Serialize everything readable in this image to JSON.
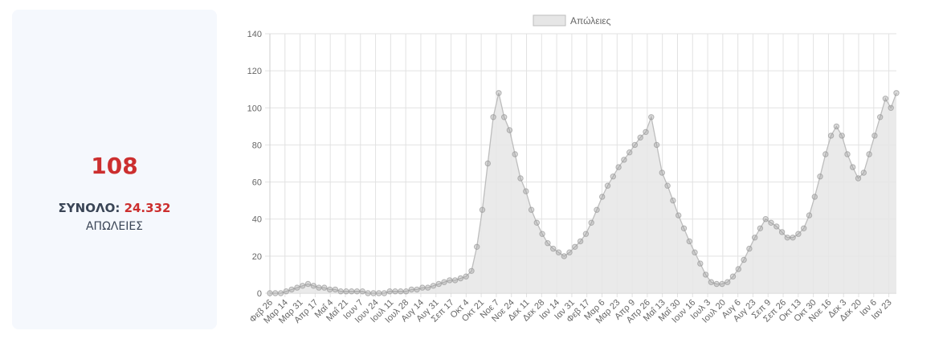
{
  "summary": {
    "latest_value": "108",
    "total_label": "ΣΥΝΟΛΟ:",
    "total_value": "24.332",
    "caption": "ΑΠΩΛΕΙΕΣ"
  },
  "chart_data": {
    "type": "line",
    "title": "",
    "xlabel": "",
    "ylabel": "",
    "ylim": [
      0,
      140
    ],
    "yticks": [
      0,
      20,
      40,
      60,
      80,
      100,
      120,
      140
    ],
    "grid": true,
    "legend": "top-center",
    "colors": {
      "fill": "#e6e6e6",
      "line": "#bdbdbd",
      "point": "#999999",
      "grid": "#e2e2e2"
    },
    "x_tick_labels": [
      "Φεβ 26",
      "Μαρ 14",
      "Μαρ 31",
      "Απρ 17",
      "Μαΐ 4",
      "Μαΐ 21",
      "Ιουν 7",
      "Ιουν 24",
      "Ιουλ 11",
      "Ιουλ 28",
      "Αυγ 14",
      "Αυγ 31",
      "Σεπ 17",
      "Οκτ 4",
      "Οκτ 21",
      "Νοε 7",
      "Νοε 24",
      "Δεκ 11",
      "Δεκ 28",
      "Ιαν 14",
      "Ιαν 31",
      "Φεβ 17",
      "Μαρ 6",
      "Μαρ 23",
      "Απρ 9",
      "Απρ 26",
      "Μαΐ 13",
      "Μαΐ 30",
      "Ιουν 16",
      "Ιουλ 3",
      "Ιουλ 20",
      "Αυγ 6",
      "Αυγ 23",
      "Σεπ 9",
      "Σεπ 26",
      "Οκτ 13",
      "Οκτ 30",
      "Νοε 16",
      "Δεκ 3",
      "Δεκ 20",
      "Ιαν 6",
      "Ιαν 23"
    ],
    "series": [
      {
        "name": "Απώλειες",
        "values": [
          0,
          0,
          0,
          1,
          2,
          3,
          4,
          5,
          4,
          3,
          3,
          2,
          2,
          1,
          1,
          1,
          1,
          1,
          0,
          0,
          0,
          0,
          1,
          1,
          1,
          1,
          2,
          2,
          3,
          3,
          4,
          5,
          6,
          7,
          7,
          8,
          9,
          12,
          25,
          45,
          70,
          95,
          108,
          95,
          88,
          75,
          62,
          55,
          45,
          38,
          32,
          27,
          24,
          22,
          20,
          22,
          25,
          28,
          32,
          38,
          45,
          52,
          58,
          63,
          68,
          72,
          76,
          80,
          84,
          87,
          95,
          80,
          65,
          58,
          50,
          42,
          35,
          28,
          22,
          16,
          10,
          6,
          5,
          5,
          6,
          9,
          13,
          18,
          24,
          30,
          35,
          40,
          38,
          36,
          33,
          30,
          30,
          32,
          35,
          42,
          52,
          63,
          75,
          85,
          90,
          85,
          75,
          68,
          62,
          65,
          75,
          85,
          95,
          105,
          100,
          108
        ]
      }
    ]
  }
}
